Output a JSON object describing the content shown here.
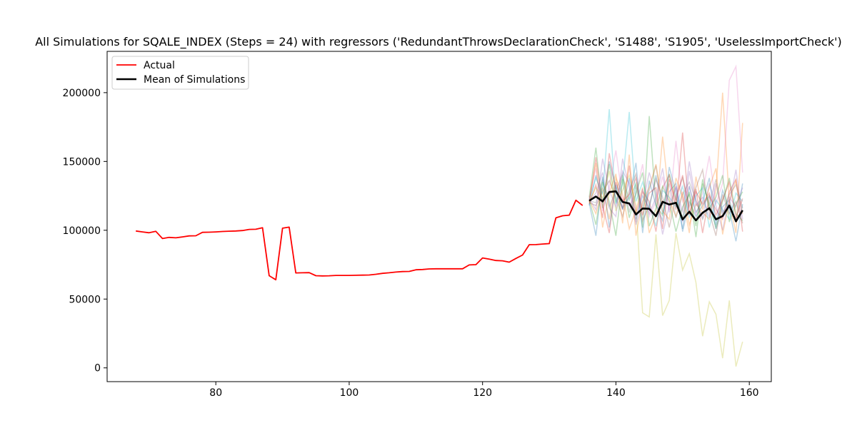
{
  "chart_data": {
    "type": "line",
    "title": "All Simulations for SQALE_INDEX (Steps = 24) with regressors ('RedundantThrowsDeclarationCheck', 'S1488', 'S1905', 'UselessImportCheck')",
    "xlabel": "",
    "ylabel": "",
    "xlim": [
      63.7,
      163.3
    ],
    "ylim": [
      -10000,
      230000
    ],
    "xticks": [
      80,
      100,
      120,
      140,
      160
    ],
    "yticks": [
      0,
      50000,
      100000,
      150000,
      200000
    ],
    "grid": false,
    "legend_position": "top-left",
    "legend": [
      "Actual",
      "Mean of Simulations"
    ],
    "series": [
      {
        "name": "Actual",
        "color": "#ff0000",
        "x": [
          68,
          69,
          70,
          71,
          72,
          73,
          74,
          75,
          76,
          77,
          78,
          79,
          80,
          81,
          82,
          83,
          84,
          85,
          86,
          87,
          88,
          89,
          90,
          91,
          92,
          93,
          94,
          95,
          96,
          97,
          98,
          99,
          100,
          101,
          102,
          103,
          104,
          105,
          106,
          107,
          108,
          109,
          110,
          111,
          112,
          113,
          114,
          115,
          116,
          117,
          118,
          119,
          120,
          121,
          122,
          123,
          124,
          125,
          126,
          127,
          128,
          129,
          130,
          131,
          132,
          133,
          134,
          135
        ],
        "y": [
          99500,
          98800,
          98200,
          99200,
          94000,
          94800,
          94500,
          95200,
          95900,
          96000,
          98500,
          98600,
          98800,
          99100,
          99300,
          99500,
          99800,
          100600,
          100700,
          101800,
          67000,
          64000,
          101500,
          102300,
          69000,
          69100,
          69200,
          67000,
          66800,
          66900,
          67200,
          67200,
          67200,
          67300,
          67400,
          67500,
          68000,
          68700,
          69100,
          69600,
          70000,
          70100,
          71300,
          71500,
          71900,
          72000,
          72000,
          72000,
          72000,
          72000,
          74800,
          75000,
          79900,
          79000,
          78000,
          77800,
          76800,
          79500,
          82000,
          89500,
          89600,
          90000,
          90300,
          109000,
          110500,
          111000,
          121800,
          118000
        ]
      },
      {
        "name": "Mean of Simulations",
        "color": "#000000",
        "x": [
          136,
          137,
          138,
          139,
          140,
          141,
          142,
          143,
          144,
          145,
          146,
          147,
          148,
          149,
          150,
          151,
          152,
          153,
          154,
          155,
          156,
          157,
          158,
          159
        ],
        "y": [
          121500,
          124500,
          121000,
          127800,
          128300,
          120600,
          119500,
          111500,
          115800,
          115600,
          110200,
          120700,
          118700,
          120000,
          107800,
          113500,
          107200,
          112700,
          116000,
          108000,
          110300,
          118000,
          106500,
          114500
        ]
      }
    ],
    "simulations": {
      "x": [
        136,
        137,
        138,
        139,
        140,
        141,
        142,
        143,
        144,
        145,
        146,
        147,
        148,
        149,
        150,
        151,
        152,
        153,
        154,
        155,
        156,
        157,
        158,
        159
      ],
      "colors": [
        "#1f77b4",
        "#ff7f0e",
        "#2ca02c",
        "#d62728",
        "#9467bd",
        "#8c564b",
        "#e377c2",
        "#7f7f7f",
        "#bcbd22",
        "#17becf"
      ],
      "values": [
        [
          118000,
          140000,
          120000,
          150000,
          131000,
          115000,
          138000,
          108000,
          125000,
          116000,
          140000,
          112000,
          128000,
          134000,
          99000,
          121000,
          110000,
          118000,
          125000,
          101000,
          117000,
          122000,
          106000,
          134000
        ],
        [
          122000,
          112000,
          131000,
          108000,
          138000,
          126000,
          101000,
          115000,
          131000,
          98000,
          111000,
          168000,
          122000,
          110000,
          128000,
          104000,
          119000,
          113000,
          108000,
          129000,
          200000,
          121000,
          98000,
          178000
        ],
        [
          124000,
          160000,
          116000,
          148000,
          120000,
          139000,
          122000,
          134000,
          102000,
          183000,
          118000,
          111000,
          141000,
          123000,
          109000,
          128000,
          95000,
          134000,
          119000,
          102000,
          121000,
          138000,
          112000,
          107000
        ],
        [
          119000,
          133000,
          109000,
          156000,
          128000,
          116000,
          147000,
          112000,
          128000,
          121000,
          99000,
          131000,
          140000,
          115000,
          171000,
          111000,
          130000,
          98000,
          125000,
          115000,
          108000,
          128000,
          137000,
          99000
        ],
        [
          121000,
          127000,
          142000,
          116000,
          110000,
          152000,
          131000,
          104000,
          119000,
          142000,
          126000,
          97000,
          118000,
          131000,
          113000,
          150000,
          121000,
          109000,
          134000,
          118000,
          100000,
          124000,
          117000,
          131000
        ],
        [
          120000,
          118000,
          128000,
          136000,
          124000,
          110000,
          129000,
          141000,
          107000,
          118000,
          137000,
          124000,
          102000,
          125000,
          138000,
          117000,
          131000,
          144000,
          113000,
          96000,
          126000,
          112000,
          121000,
          105000
        ],
        [
          123000,
          145000,
          114000,
          131000,
          158000,
          122000,
          118000,
          126000,
          148000,
          110000,
          121000,
          139000,
          115000,
          165000,
          121000,
          132000,
          111000,
          127000,
          154000,
          119000,
          134000,
          209000,
          219000,
          142000
        ],
        [
          121500,
          120000,
          137000,
          117000,
          129000,
          141000,
          113000,
          132000,
          116000,
          129000,
          147000,
          118000,
          134000,
          109000,
          126000,
          135000,
          122000,
          108000,
          119000,
          137000,
          111000,
          126000,
          133000,
          116000
        ],
        [
          120500,
          131000,
          123000,
          143000,
          114000,
          129000,
          140000,
          118000,
          40000,
          37000,
          97000,
          38000,
          49000,
          98000,
          71000,
          83000,
          62000,
          23000,
          48000,
          39000,
          7000,
          49000,
          1000,
          19000
        ],
        [
          122500,
          138000,
          126000,
          188000,
          119000,
          134000,
          186000,
          121000,
          135000,
          118000,
          103000,
          129000,
          124000,
          117000,
          132000,
          109000,
          125000,
          131000,
          102000,
          122000,
          115000,
          108000,
          127000,
          121000
        ],
        [
          119500,
          96000,
          139000,
          102000,
          133000,
          116000,
          124000,
          149000,
          98000,
          136000,
          118000,
          107000,
          146000,
          127000,
          101000,
          132000,
          113000,
          121000,
          138000,
          104000,
          129000,
          115000,
          92000,
          119000
        ],
        [
          121000,
          149000,
          102000,
          127000,
          141000,
          105000,
          155000,
          96000,
          121000,
          131000,
          148000,
          114000,
          108000,
          138000,
          124000,
          98000,
          139000,
          115000,
          131000,
          145000,
          97000,
          121000,
          136000,
          112000
        ],
        [
          122000,
          104000,
          135000,
          121000,
          96000,
          137000,
          109000,
          127000,
          142000,
          103000,
          116000,
          132000,
          121000,
          99000,
          117000,
          126000,
          103000,
          137000,
          116000,
          124000,
          140000,
          106000,
          119000,
          128000
        ],
        [
          120000,
          153000,
          118000,
          98000,
          135000,
          121000,
          126000,
          138000,
          111000,
          127000,
          131000,
          101000,
          137000,
          121000,
          140000,
          112000,
          128000,
          119000,
          127000,
          111000,
          122000,
          135000,
          109000,
          123000
        ],
        [
          123000,
          115000,
          152000,
          129000,
          117000,
          143000,
          134000,
          106000,
          130000,
          112000,
          124000,
          145000,
          113000,
          132000,
          106000,
          143000,
          118000,
          124000,
          109000,
          134000,
          113000,
          119000,
          144000,
          108000
        ]
      ]
    }
  }
}
